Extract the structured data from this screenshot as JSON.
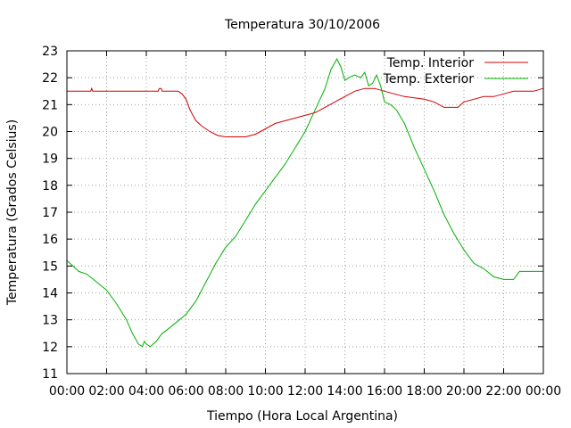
{
  "chart_data": {
    "type": "line",
    "title": "Temperatura 30/10/2006",
    "xlabel": "Tiempo (Hora Local Argentina)",
    "ylabel": "Temperatura (Grados Celsius)",
    "xlim": [
      0,
      24
    ],
    "ylim": [
      11,
      23
    ],
    "x_tick_labels": [
      "00:00",
      "02:00",
      "04:00",
      "06:00",
      "08:00",
      "10:00",
      "12:00",
      "14:00",
      "16:00",
      "18:00",
      "20:00",
      "22:00",
      "00:00"
    ],
    "y_tick_labels": [
      "11",
      "12",
      "13",
      "14",
      "15",
      "16",
      "17",
      "18",
      "19",
      "20",
      "21",
      "22",
      "23"
    ],
    "grid": true,
    "legend_position": "top-right",
    "series": [
      {
        "name": "Temp. Interior",
        "color": "#d00000",
        "x": [
          0,
          1.2,
          1.25,
          1.3,
          4.6,
          4.65,
          4.75,
          4.8,
          5.6,
          5.8,
          6.0,
          6.2,
          6.5,
          6.8,
          7.2,
          7.6,
          8.0,
          9.0,
          9.5,
          10.0,
          10.5,
          11.0,
          11.5,
          12.0,
          12.5,
          13.0,
          13.5,
          14.0,
          14.5,
          15.0,
          15.5,
          16.0,
          16.5,
          17.0,
          17.5,
          18.0,
          18.5,
          19.0,
          19.7,
          20.0,
          20.5,
          21.0,
          21.5,
          22.0,
          22.5,
          23.0,
          23.5,
          24.0
        ],
        "values": [
          21.5,
          21.5,
          21.6,
          21.5,
          21.5,
          21.6,
          21.6,
          21.5,
          21.5,
          21.4,
          21.2,
          20.8,
          20.4,
          20.2,
          20.0,
          19.85,
          19.8,
          19.8,
          19.9,
          20.1,
          20.3,
          20.4,
          20.5,
          20.6,
          20.7,
          20.9,
          21.1,
          21.3,
          21.5,
          21.6,
          21.6,
          21.5,
          21.4,
          21.3,
          21.25,
          21.2,
          21.1,
          20.9,
          20.9,
          21.1,
          21.2,
          21.3,
          21.3,
          21.4,
          21.5,
          21.5,
          21.5,
          21.6
        ]
      },
      {
        "name": "Temp. Exterior",
        "color": "#00b000",
        "x": [
          0,
          0.3,
          0.6,
          1.0,
          1.5,
          2.0,
          2.5,
          3.0,
          3.3,
          3.6,
          3.8,
          3.9,
          4.0,
          4.2,
          4.5,
          4.8,
          5.0,
          5.5,
          6.0,
          6.5,
          7.0,
          7.5,
          8.0,
          8.5,
          9.0,
          9.5,
          10.0,
          10.5,
          11.0,
          11.5,
          12.0,
          12.5,
          13.0,
          13.3,
          13.6,
          13.8,
          14.0,
          14.2,
          14.5,
          14.8,
          15.0,
          15.2,
          15.4,
          15.6,
          15.8,
          16.0,
          16.3,
          16.6,
          17.0,
          17.5,
          18.0,
          18.5,
          19.0,
          19.5,
          20.0,
          20.5,
          21.0,
          21.5,
          22.0,
          22.5,
          22.8,
          23.0,
          23.5,
          24.0
        ],
        "values": [
          15.2,
          15.0,
          14.8,
          14.7,
          14.4,
          14.1,
          13.6,
          13.0,
          12.5,
          12.1,
          12.0,
          12.2,
          12.1,
          12.0,
          12.2,
          12.5,
          12.6,
          12.9,
          13.2,
          13.7,
          14.4,
          15.1,
          15.7,
          16.1,
          16.7,
          17.3,
          17.8,
          18.3,
          18.8,
          19.4,
          20.0,
          20.8,
          21.6,
          22.3,
          22.7,
          22.4,
          21.9,
          22.0,
          22.1,
          22.0,
          22.2,
          21.7,
          21.8,
          22.1,
          21.7,
          21.1,
          21.0,
          20.8,
          20.3,
          19.4,
          18.6,
          17.8,
          16.9,
          16.2,
          15.6,
          15.1,
          14.9,
          14.6,
          14.5,
          14.5,
          14.8,
          14.8,
          14.8,
          14.8
        ]
      }
    ]
  }
}
